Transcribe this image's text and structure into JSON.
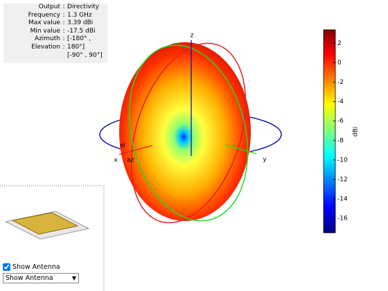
{
  "info_panel": {
    "rows": [
      {
        "label": "Output",
        "value": "Directivity"
      },
      {
        "label": "Frequency",
        "value": "1.3 GHz"
      },
      {
        "label": "Max value",
        "value": "3.39 dBi"
      },
      {
        "label": "Min value",
        "value": "-17.5 dBi"
      },
      {
        "label": "Azimuth",
        "value": "[-180° ,"
      },
      {
        "label": "Elevation",
        "value": "180°]"
      },
      {
        "value": "[-90° , 90°]"
      }
    ]
  },
  "axes": {
    "x": "x",
    "y": "y",
    "z": "z",
    "az": "az",
    "el": "el"
  },
  "colorbar": {
    "label": "dBi",
    "lim": [
      -17.5,
      3.39
    ],
    "ticks": [
      2,
      0,
      -2,
      -4,
      -6,
      -8,
      -10,
      -12,
      -14,
      -16
    ]
  },
  "controls": {
    "checkbox": "Show Antenna",
    "dropdown": "Show Antenna"
  }
}
